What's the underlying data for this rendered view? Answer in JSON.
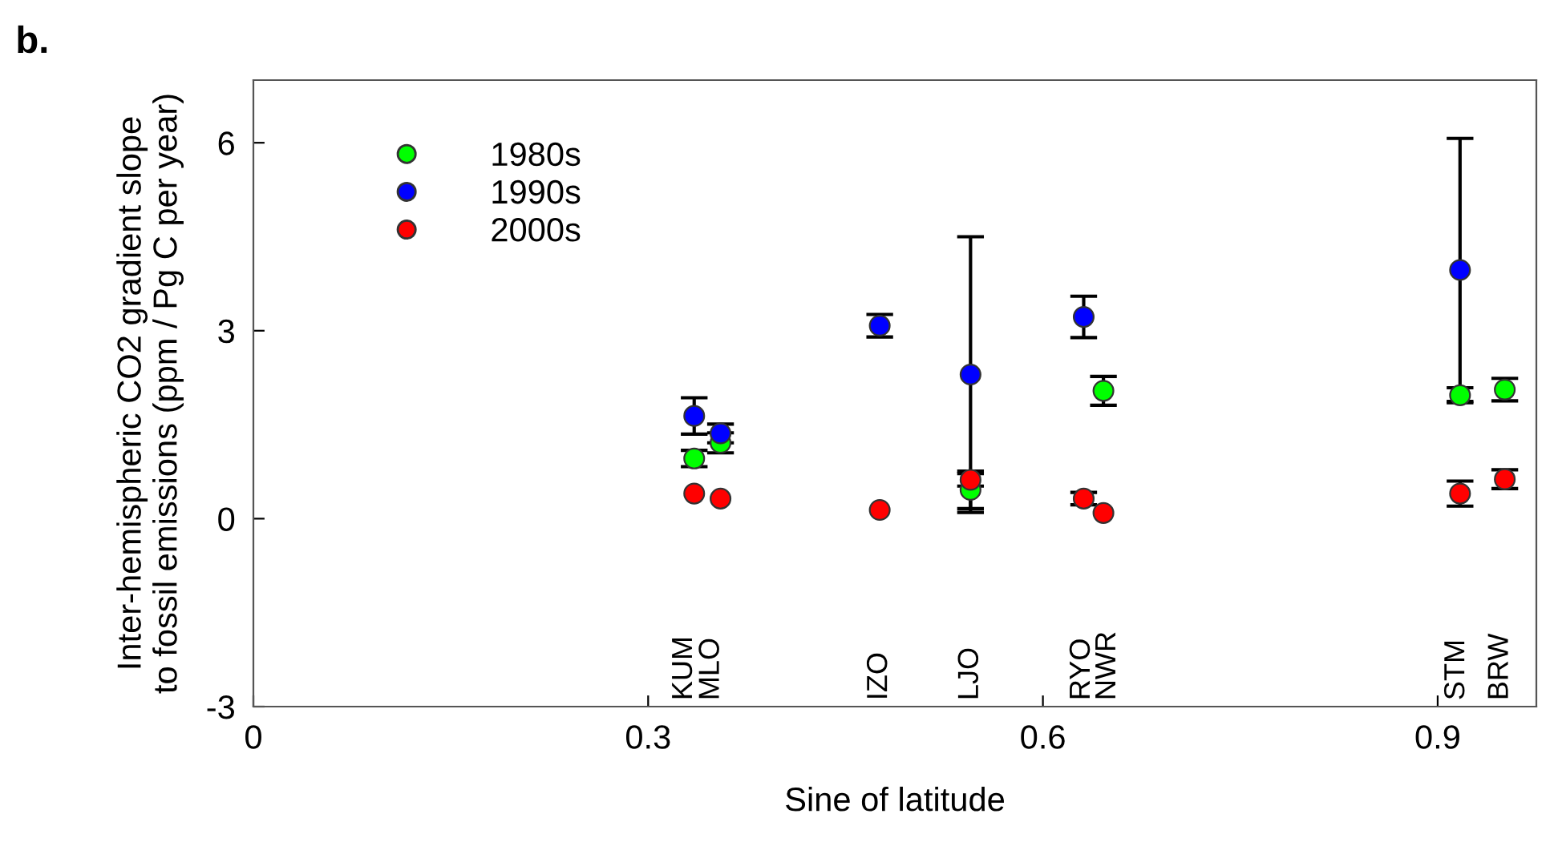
{
  "chart_data": {
    "type": "scatter",
    "title": "b.",
    "xlabel": "Sine of latitude",
    "ylabel": "Inter-hemispheric CO2 gradient slope\nto fossil emissions (ppm / Pg C per year)",
    "xlim": [
      0,
      0.975
    ],
    "ylim": [
      -3,
      7
    ],
    "xticks": [
      0,
      0.3,
      0.6,
      0.9
    ],
    "yticks": [
      -3,
      0,
      3,
      6
    ],
    "marker": "circle",
    "grid": false,
    "legend": "top left",
    "series": [
      {
        "name": "1980s",
        "color": "#00ff00",
        "x": [
          0.335,
          0.355,
          0.545,
          0.646,
          0.917,
          0.951
        ],
        "values": [
          0.96,
          1.21,
          0.46,
          2.04,
          1.97,
          2.06
        ],
        "errors": [
          0.13,
          0.16,
          0.3,
          0.23,
          0.12,
          0.18
        ]
      },
      {
        "name": "1990s",
        "color": "#0000ff",
        "x": [
          0.335,
          0.355,
          0.476,
          0.545,
          0.631,
          0.917
        ],
        "values": [
          1.64,
          1.36,
          3.08,
          2.3,
          3.22,
          3.97
        ],
        "errors": [
          0.29,
          0.15,
          0.18,
          2.2,
          0.33,
          2.1
        ]
      },
      {
        "name": "2000s",
        "color": "#ff0000",
        "x": [
          0.335,
          0.355,
          0.476,
          0.545,
          0.631,
          0.646,
          0.917,
          0.951
        ],
        "values": [
          0.4,
          0.32,
          0.14,
          0.62,
          0.32,
          0.09,
          0.4,
          0.63
        ],
        "errors": [
          null,
          null,
          null,
          0.1,
          0.1,
          null,
          0.2,
          0.15
        ]
      }
    ],
    "annotations": [
      "KUM",
      "MLO",
      "IZO",
      "LJO",
      "RYO",
      "NWR",
      "STM",
      "BRW"
    ]
  }
}
